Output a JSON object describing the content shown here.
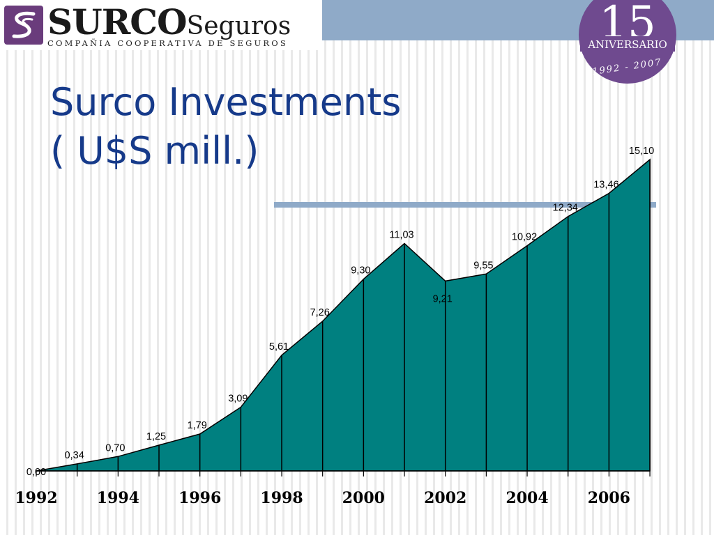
{
  "logo": {
    "brand": "SURCO",
    "brand_suffix": "Seguros",
    "subtitle": "COMPAÑIA COOPERATIVA DE SEGUROS"
  },
  "badge": {
    "number": "15",
    "label": "ANIVERSARIO",
    "years": "1992 - 2007"
  },
  "title_line1": "Surco Investments",
  "title_line2": "( U$S mill.)",
  "colors": {
    "area_fill": "#008080",
    "title": "#163a8a",
    "accent_band": "#8faac8",
    "badge": "#6f4a8f"
  },
  "chart_data": {
    "type": "area",
    "x": [
      1992,
      1993,
      1994,
      1995,
      1996,
      1997,
      1998,
      1999,
      2000,
      2001,
      2002,
      2003,
      2004,
      2005,
      2006,
      2007
    ],
    "values": [
      0.0,
      0.34,
      0.7,
      1.25,
      1.79,
      3.09,
      5.61,
      7.26,
      9.3,
      11.03,
      9.21,
      9.55,
      10.92,
      12.34,
      13.46,
      15.1
    ],
    "value_labels": [
      "0,00",
      "0,34",
      "0,70",
      "1,25",
      "1,79",
      "3,09",
      "5,61",
      "7,26",
      "9,30",
      "11,03",
      "9,21",
      "9,55",
      "10,92",
      "12,34",
      "13,46",
      "15,10"
    ],
    "tick_labels": [
      "1992",
      "1994",
      "1996",
      "1998",
      "2000",
      "2002",
      "2004",
      "2006"
    ],
    "tick_years": [
      1992,
      1994,
      1996,
      1998,
      2000,
      2002,
      2004,
      2006
    ],
    "ylim": [
      0,
      15.1
    ],
    "grid": false,
    "legend": "none"
  }
}
